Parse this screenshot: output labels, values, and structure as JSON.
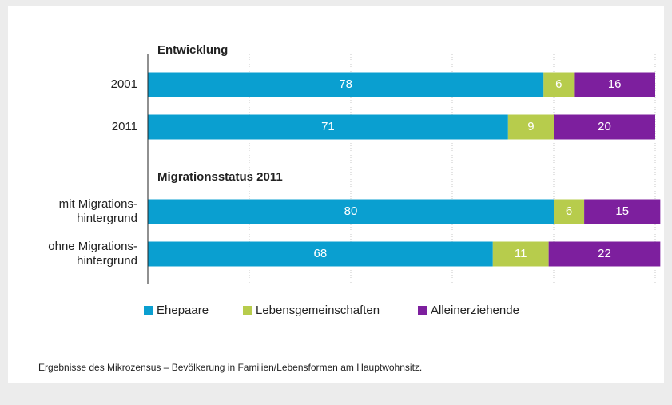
{
  "chart_data": {
    "type": "stacked-bar-horizontal",
    "annotations": [
      "Entwicklung",
      "Migrationsstatus 2011"
    ],
    "categories": [
      "2001",
      "2011",
      "mit Migrations-\nhintergrund",
      "ohne Migrations-\nhintergrund"
    ],
    "series": [
      {
        "name": "Ehepaare",
        "color": "#0a9fd0",
        "values": [
          78,
          71,
          80,
          68
        ]
      },
      {
        "name": "Lebensgemeinschaften",
        "color": "#b7cc4c",
        "values": [
          6,
          9,
          6,
          11
        ]
      },
      {
        "name": "Alleinerziehende",
        "color": "#7d1f9e",
        "values": [
          16,
          20,
          15,
          22
        ]
      }
    ],
    "xlim": [
      0,
      100
    ],
    "xticks": [
      0,
      20,
      40,
      60,
      80,
      100
    ],
    "grid": true,
    "legend": "bottom",
    "note": "Ergebnisse des Mikrozensus – Bevölkerung in Familien/Lebensformen am Hauptwohnsitz."
  }
}
